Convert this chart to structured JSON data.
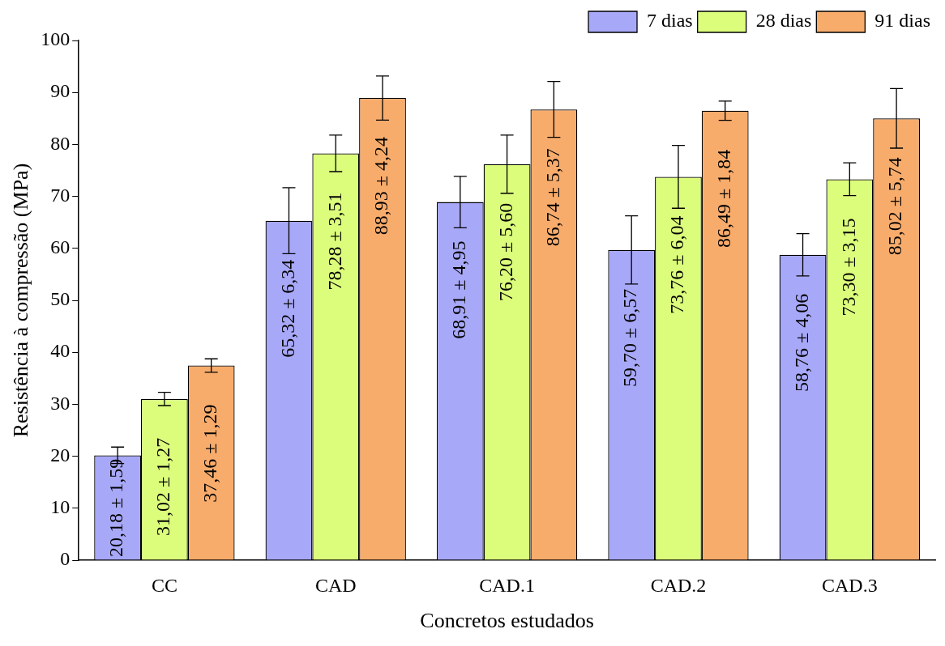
{
  "chart_data": {
    "type": "bar",
    "xlabel": "Concretos estudados",
    "ylabel": "Resistência à compressão (MPa)",
    "categories": [
      "CC",
      "CAD",
      "CAD.1",
      "CAD.2",
      "CAD.3"
    ],
    "series": [
      {
        "name": "7 dias",
        "color": "#a8a8f8",
        "values": [
          20.18,
          65.32,
          68.91,
          59.7,
          58.76
        ],
        "errors": [
          1.59,
          6.34,
          4.95,
          6.57,
          4.06
        ],
        "value_labels": [
          "20,18 ± 1,59",
          "65,32 ± 6,34",
          "68,91 ± 4,95",
          "59,70 ± 6,57",
          "58,76 ± 4,06"
        ]
      },
      {
        "name": "28 dias",
        "color": "#dcfc7c",
        "values": [
          31.02,
          78.28,
          76.2,
          73.76,
          73.3
        ],
        "errors": [
          1.27,
          3.51,
          5.6,
          6.04,
          3.15
        ],
        "value_labels": [
          "31,02 ± 1,27",
          "78,28 ± 3,51",
          "76,20 ± 5,60",
          "73,76 ± 6,04",
          "73,30 ± 3,15"
        ]
      },
      {
        "name": "91 dias",
        "color": "#f8ac6c",
        "values": [
          37.46,
          88.93,
          86.74,
          86.49,
          85.02
        ],
        "errors": [
          1.29,
          4.24,
          5.37,
          1.84,
          5.74
        ],
        "value_labels": [
          "37,46 ± 1,29",
          "88,93 ± 4,24",
          "86,74 ± 5,37",
          "86,49 ± 1,84",
          "85,02 ± 5,74"
        ]
      }
    ],
    "ylim": [
      0,
      100
    ],
    "yticks": [
      0,
      10,
      20,
      30,
      40,
      50,
      60,
      70,
      80,
      90,
      100
    ],
    "grid": false,
    "legend": "top right"
  }
}
